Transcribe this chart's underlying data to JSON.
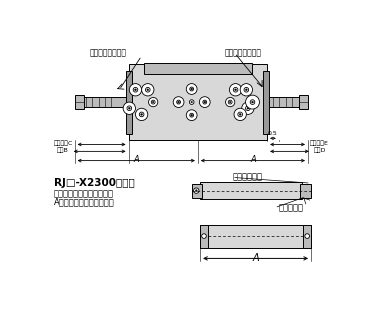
{
  "bg_color": "#ffffff",
  "line_color": "#000000",
  "gray_fill": "#bbbbbb",
  "light_gray": "#d8d8d8",
  "mid_gray": "#999999",
  "dark_gray": "#777777",
  "labels": {
    "rear_adjuster": "後退端アジャスタ",
    "front_adjuster": "前進端アジャスタ",
    "adj_range_C": "調整範囲C",
    "max_B": "最大B",
    "dim_A": "A",
    "val_05": "0.5",
    "adj_range_E": "調整範囲E",
    "max_D": "最大D",
    "rj_title": "RJ□-X2300の場合",
    "rj_text1": "キャップ金具を取付けて、",
    "rj_text2": "A寸法を長くしています。",
    "cap_fitting": "キャップ金具",
    "stroke": "ストローク"
  }
}
